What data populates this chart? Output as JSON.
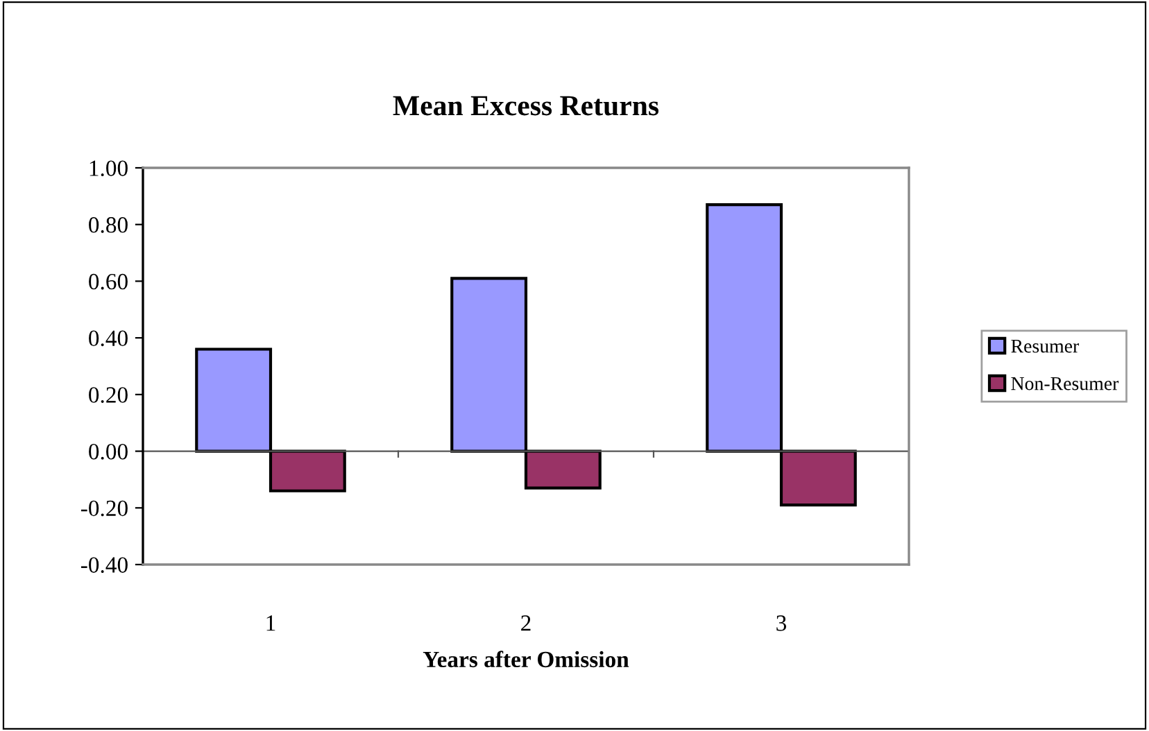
{
  "chart_data": {
    "type": "bar",
    "title": "Mean Excess Returns",
    "xlabel": "Years after Omission",
    "categories": [
      "1",
      "2",
      "3"
    ],
    "series": [
      {
        "name": "Resumer",
        "color": "#9999ff",
        "values": [
          0.36,
          0.61,
          0.87
        ]
      },
      {
        "name": "Non-Resumer",
        "color": "#993366",
        "values": [
          -0.14,
          -0.13,
          -0.19
        ]
      }
    ],
    "ylim": [
      -0.4,
      1.0
    ],
    "yticks": [
      {
        "value": -0.4,
        "label": "-0.40"
      },
      {
        "value": -0.2,
        "label": "-0.20"
      },
      {
        "value": 0,
        "label": "0.00"
      },
      {
        "value": 0.2,
        "label": "0.20"
      },
      {
        "value": 0.4,
        "label": "0.40"
      },
      {
        "value": 0.6,
        "label": "0.60"
      },
      {
        "value": 0.8,
        "label": "0.80"
      },
      {
        "value": 1.0,
        "label": "1.00"
      }
    ],
    "ref_lines": [
      {
        "axis": "y",
        "value": 0,
        "color": "#555555"
      }
    ],
    "grid": false,
    "legend": "right"
  }
}
